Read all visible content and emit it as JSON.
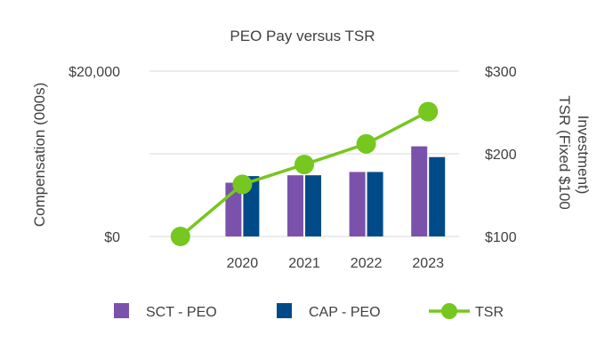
{
  "chart_data": {
    "type": "bar",
    "title": "PEO Pay versus TSR",
    "categories": [
      "2020",
      "2021",
      "2022",
      "2023"
    ],
    "y_left": {
      "label": "Compensation (000s)",
      "ticks": [
        "$0",
        "$20,000"
      ],
      "range": [
        0,
        20000
      ]
    },
    "y_right": {
      "label_lines": [
        "TSR (Fixed $100",
        "Investment)"
      ],
      "ticks": [
        "$100",
        "$200",
        "$300"
      ],
      "range": [
        100,
        300
      ]
    },
    "series": [
      {
        "name": "SCT - PEO",
        "kind": "bar",
        "axis": "left",
        "color": "#7b52ab",
        "values": [
          6500,
          7400,
          7800,
          10900
        ]
      },
      {
        "name": "CAP - PEO",
        "kind": "bar",
        "axis": "left",
        "color": "#004b87",
        "values": [
          7300,
          7400,
          7800,
          9600
        ]
      },
      {
        "name": "TSR",
        "kind": "line",
        "axis": "right",
        "color": "#76c71f",
        "x": [
          "",
          "2020",
          "2021",
          "2022",
          "2023"
        ],
        "values": [
          100,
          163,
          187,
          212,
          251
        ]
      }
    ],
    "grid": {
      "horizontal": true
    },
    "legend_position": "bottom"
  }
}
